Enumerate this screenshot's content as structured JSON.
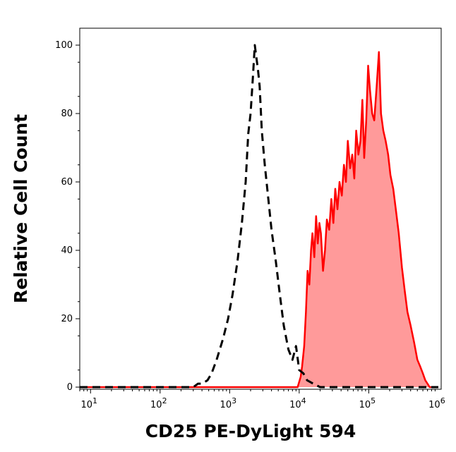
{
  "chart_data": {
    "type": "area",
    "title": "",
    "xlabel": "CD25 PE-DyLight 594",
    "ylabel": "Relative Cell Count",
    "x_scale": "log",
    "xlim": [
      7,
      1100000
    ],
    "ylim": [
      0,
      100
    ],
    "grid": false,
    "x_ticks": [
      {
        "value": 10,
        "base": "10",
        "exp": "1"
      },
      {
        "value": 100,
        "base": "10",
        "exp": "2"
      },
      {
        "value": 1000,
        "base": "10",
        "exp": "3"
      },
      {
        "value": 10000,
        "base": "10",
        "exp": "4"
      },
      {
        "value": 100000,
        "base": "10",
        "exp": "5"
      },
      {
        "value": 1000000,
        "base": "10",
        "exp": "6"
      }
    ],
    "y_ticks": [
      {
        "value": 0,
        "label": "0"
      },
      {
        "value": 20,
        "label": "20"
      },
      {
        "value": 40,
        "label": "40"
      },
      {
        "value": 60,
        "label": "60"
      },
      {
        "value": 80,
        "label": "80"
      },
      {
        "value": 100,
        "label": "100"
      }
    ],
    "series": [
      {
        "style": "dashed",
        "color": "#000000",
        "fill": "none",
        "points": [
          [
            7,
            0
          ],
          [
            300,
            0
          ],
          [
            350,
            1
          ],
          [
            400,
            1
          ],
          [
            480,
            2
          ],
          [
            550,
            4
          ],
          [
            650,
            8
          ],
          [
            800,
            14
          ],
          [
            950,
            20
          ],
          [
            1100,
            27
          ],
          [
            1300,
            37
          ],
          [
            1500,
            48
          ],
          [
            1700,
            60
          ],
          [
            1850,
            74
          ],
          [
            2000,
            80
          ],
          [
            2150,
            90
          ],
          [
            2300,
            100
          ],
          [
            2400,
            97
          ],
          [
            2550,
            93
          ],
          [
            2700,
            88
          ],
          [
            2900,
            75
          ],
          [
            3200,
            65
          ],
          [
            3600,
            55
          ],
          [
            4000,
            46
          ],
          [
            4600,
            37
          ],
          [
            5200,
            28
          ],
          [
            6000,
            18
          ],
          [
            7000,
            11
          ],
          [
            8000,
            8
          ],
          [
            9000,
            12
          ],
          [
            10000,
            5
          ],
          [
            11500,
            4
          ],
          [
            13000,
            2
          ],
          [
            16000,
            1
          ],
          [
            20000,
            0
          ],
          [
            60000,
            0
          ],
          [
            1000000,
            0
          ]
        ]
      },
      {
        "style": "solid",
        "color": "#ff0000",
        "fill": "#ff9a9a",
        "points": [
          [
            7,
            0
          ],
          [
            9500,
            0
          ],
          [
            10500,
            3
          ],
          [
            11000,
            6
          ],
          [
            11800,
            12
          ],
          [
            12500,
            22
          ],
          [
            13200,
            34
          ],
          [
            14000,
            30
          ],
          [
            14800,
            40
          ],
          [
            15500,
            45
          ],
          [
            16500,
            38
          ],
          [
            17500,
            50
          ],
          [
            18500,
            42
          ],
          [
            19500,
            48
          ],
          [
            20500,
            45
          ],
          [
            22000,
            34
          ],
          [
            23500,
            40
          ],
          [
            25000,
            49
          ],
          [
            27000,
            46
          ],
          [
            29000,
            55
          ],
          [
            31000,
            48
          ],
          [
            33000,
            58
          ],
          [
            35500,
            52
          ],
          [
            38000,
            60
          ],
          [
            41000,
            56
          ],
          [
            44000,
            65
          ],
          [
            47000,
            60
          ],
          [
            50000,
            72
          ],
          [
            54000,
            64
          ],
          [
            58000,
            68
          ],
          [
            62000,
            61
          ],
          [
            66000,
            75
          ],
          [
            71000,
            68
          ],
          [
            76000,
            72
          ],
          [
            81000,
            84
          ],
          [
            86000,
            67
          ],
          [
            92000,
            78
          ],
          [
            98000,
            94
          ],
          [
            104000,
            87
          ],
          [
            112000,
            80
          ],
          [
            120000,
            78
          ],
          [
            130000,
            88
          ],
          [
            140000,
            98
          ],
          [
            150000,
            80
          ],
          [
            162000,
            75
          ],
          [
            175000,
            72
          ],
          [
            190000,
            68
          ],
          [
            205000,
            62
          ],
          [
            225000,
            58
          ],
          [
            245000,
            52
          ],
          [
            270000,
            45
          ],
          [
            300000,
            35
          ],
          [
            330000,
            28
          ],
          [
            360000,
            22
          ],
          [
            400000,
            18
          ],
          [
            450000,
            13
          ],
          [
            500000,
            8
          ],
          [
            550000,
            6
          ],
          [
            600000,
            4
          ],
          [
            650000,
            2
          ],
          [
            700000,
            1
          ],
          [
            750000,
            0
          ],
          [
            1000000,
            0
          ]
        ]
      }
    ]
  }
}
